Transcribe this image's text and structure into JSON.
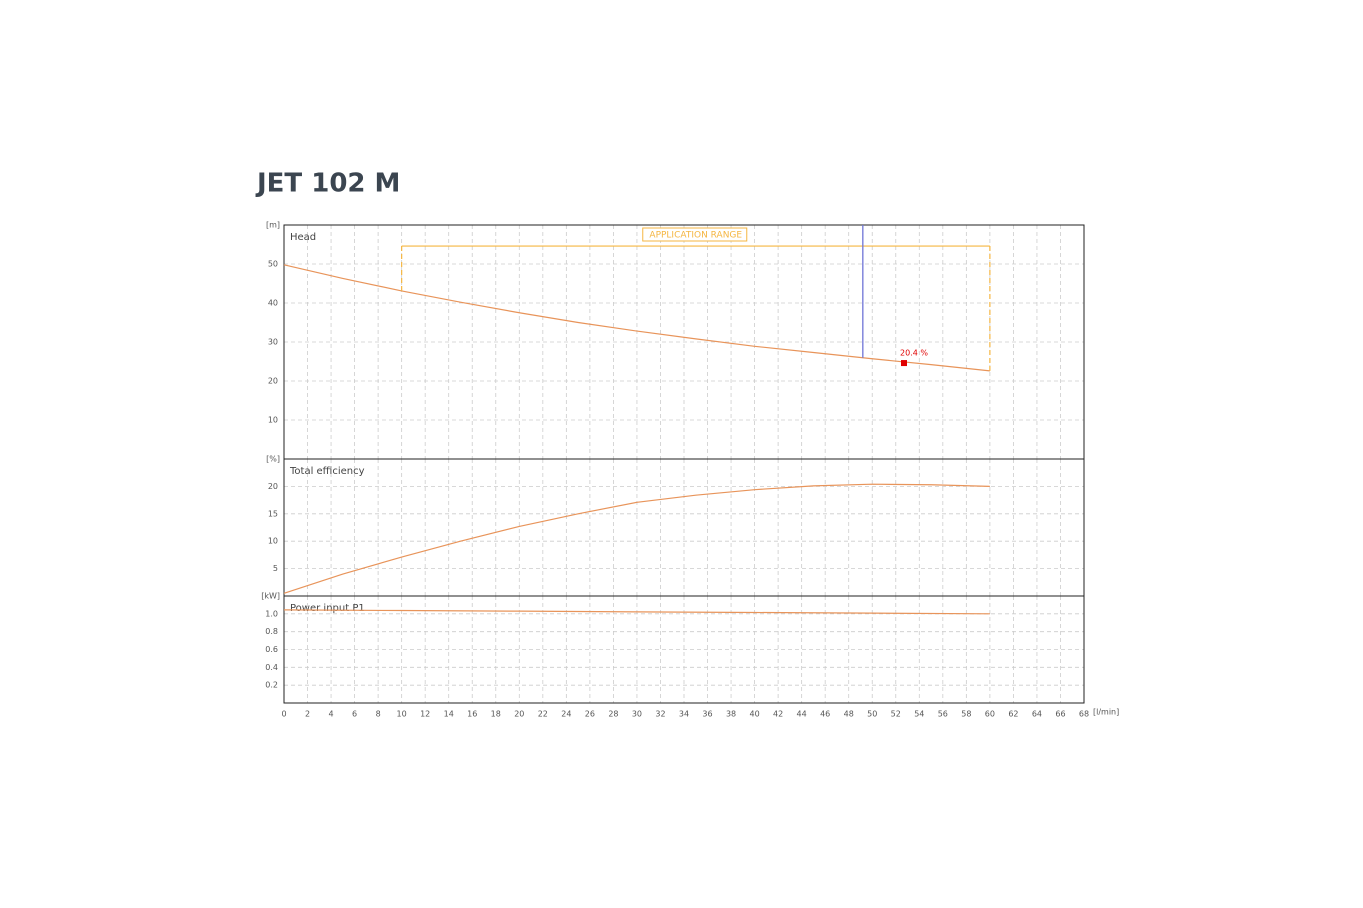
{
  "header": {
    "title": "JET 102 M"
  },
  "chart_data": [
    {
      "type": "line",
      "title": "Head",
      "ylabel": "[m]",
      "x": [
        0,
        5,
        10,
        15,
        20,
        25,
        30,
        35,
        40,
        45,
        50,
        55,
        60
      ],
      "series": [
        {
          "color": "#e8945a",
          "values": [
            49.8,
            46.3,
            43.1,
            40.2,
            37.5,
            35.0,
            32.8,
            30.8,
            28.9,
            27.3,
            25.7,
            24.2,
            22.6
          ]
        }
      ],
      "xlim": [
        0,
        68
      ],
      "xticks": [
        0,
        2,
        4,
        6,
        8,
        10,
        12,
        14,
        16,
        18,
        20,
        22,
        24,
        26,
        28,
        30,
        32,
        34,
        36,
        38,
        40,
        42,
        44,
        46,
        48,
        50,
        52,
        54,
        56,
        58,
        60,
        62,
        64,
        66,
        68
      ],
      "ylim": [
        0,
        60
      ],
      "yticks": [
        10,
        20,
        30,
        40,
        50
      ],
      "grid": true,
      "application_range": {
        "label": "APPLICATION RANGE",
        "x": [
          10,
          60
        ],
        "y": 54.6,
        "color": "#f5b642"
      },
      "vertical_line": {
        "x": 49.2,
        "color": "#6f74d6"
      },
      "operating_point": {
        "x": 52.7,
        "y": 24.6,
        "label": "20.4 %",
        "color": "#e00000"
      }
    },
    {
      "type": "line",
      "title": "Total efficiency",
      "ylabel": "[%]",
      "x": [
        0,
        5,
        10,
        15,
        20,
        25,
        30,
        35,
        40,
        45,
        50,
        55,
        60
      ],
      "series": [
        {
          "color": "#e8945a",
          "values": [
            0.5,
            4.0,
            7.1,
            10.0,
            12.7,
            15.0,
            17.1,
            18.4,
            19.4,
            20.1,
            20.4,
            20.3,
            20.0
          ]
        }
      ],
      "xlim": [
        0,
        68
      ],
      "xticks": [
        0,
        2,
        4,
        6,
        8,
        10,
        12,
        14,
        16,
        18,
        20,
        22,
        24,
        26,
        28,
        30,
        32,
        34,
        36,
        38,
        40,
        42,
        44,
        46,
        48,
        50,
        52,
        54,
        56,
        58,
        60,
        62,
        64,
        66,
        68
      ],
      "ylim": [
        0,
        25
      ],
      "yticks": [
        5,
        10,
        15,
        20
      ],
      "grid": true
    },
    {
      "type": "line",
      "title": "Power input P1",
      "ylabel": "[kW]",
      "xlabel": "[l/min]",
      "x": [
        0,
        10,
        20,
        30,
        40,
        50,
        60
      ],
      "series": [
        {
          "color": "#e8945a",
          "values": [
            1.044,
            1.037,
            1.03,
            1.022,
            1.015,
            1.008,
            1.0
          ]
        }
      ],
      "xlim": [
        0,
        68
      ],
      "xticks": [
        0,
        2,
        4,
        6,
        8,
        10,
        12,
        14,
        16,
        18,
        20,
        22,
        24,
        26,
        28,
        30,
        32,
        34,
        36,
        38,
        40,
        42,
        44,
        46,
        48,
        50,
        52,
        54,
        56,
        58,
        60,
        62,
        64,
        66,
        68
      ],
      "ylim": [
        0,
        1.2
      ],
      "yticks": [
        0.2,
        0.4,
        0.6,
        0.8,
        {
          "value": 1,
          "label": "1.0"
        }
      ],
      "grid": true
    }
  ]
}
